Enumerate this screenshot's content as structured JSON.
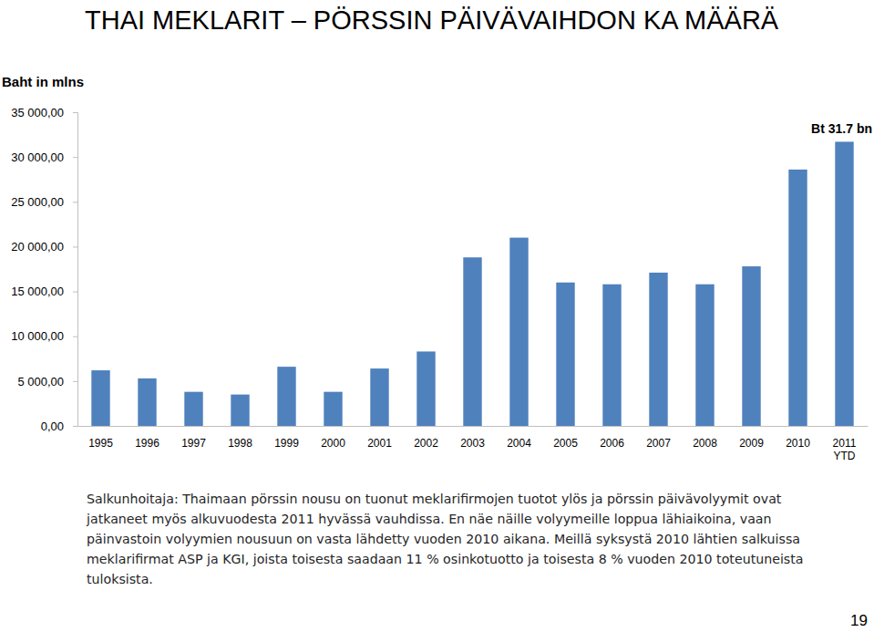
{
  "chart_data": {
    "type": "bar",
    "title": "THAI MEKLARIT – PÖRSSIN PÄIVÄVAIHDON KA MÄÄRÄ",
    "y_label": "Baht in mlns",
    "categories": [
      "1995",
      "1996",
      "1997",
      "1998",
      "1999",
      "2000",
      "2001",
      "2002",
      "2003",
      "2004",
      "2005",
      "2006",
      "2007",
      "2008",
      "2009",
      "2010",
      "2011 YTD"
    ],
    "values": [
      6200,
      5300,
      3800,
      3500,
      6600,
      3800,
      6400,
      8300,
      18800,
      21000,
      16000,
      15800,
      17100,
      15800,
      17800,
      28600,
      31700
    ],
    "color": "#4f81bd",
    "ylim": [
      0,
      35000
    ],
    "yticks": [
      {
        "value": 0,
        "label": "0,00"
      },
      {
        "value": 5000,
        "label": "5 000,00"
      },
      {
        "value": 10000,
        "label": "10 000,00"
      },
      {
        "value": 15000,
        "label": "15 000,00"
      },
      {
        "value": 20000,
        "label": "20 000,00"
      },
      {
        "value": 25000,
        "label": "25 000,00"
      },
      {
        "value": 30000,
        "label": "30 000,00"
      },
      {
        "value": 35000,
        "label": "35 000,00"
      }
    ],
    "grid": false,
    "annotations": [
      "Bt 31.7 bn",
      "Salkunhoitaja: Thaimaan pörssin nousu on tuonut meklarifirmojen tuotot ylös ja pörssin päivävolyymit ovat jatkaneet myös alkuvuodesta 2011 hyvässä vauhdissa. En näe näille volyymeille loppua lähiaikoina, vaan päinvastoin volyymien nousuun on vasta lähdetty vuoden 2010 aikana. Meillä syksystä 2010 lähtien salkuissa meklarifirmat ASP ja KGI, joista toisesta saadaan 11 % osinkotuotto ja toisesta 8 % vuoden 2010 toteutuneista tuloksista.",
      "19"
    ]
  }
}
